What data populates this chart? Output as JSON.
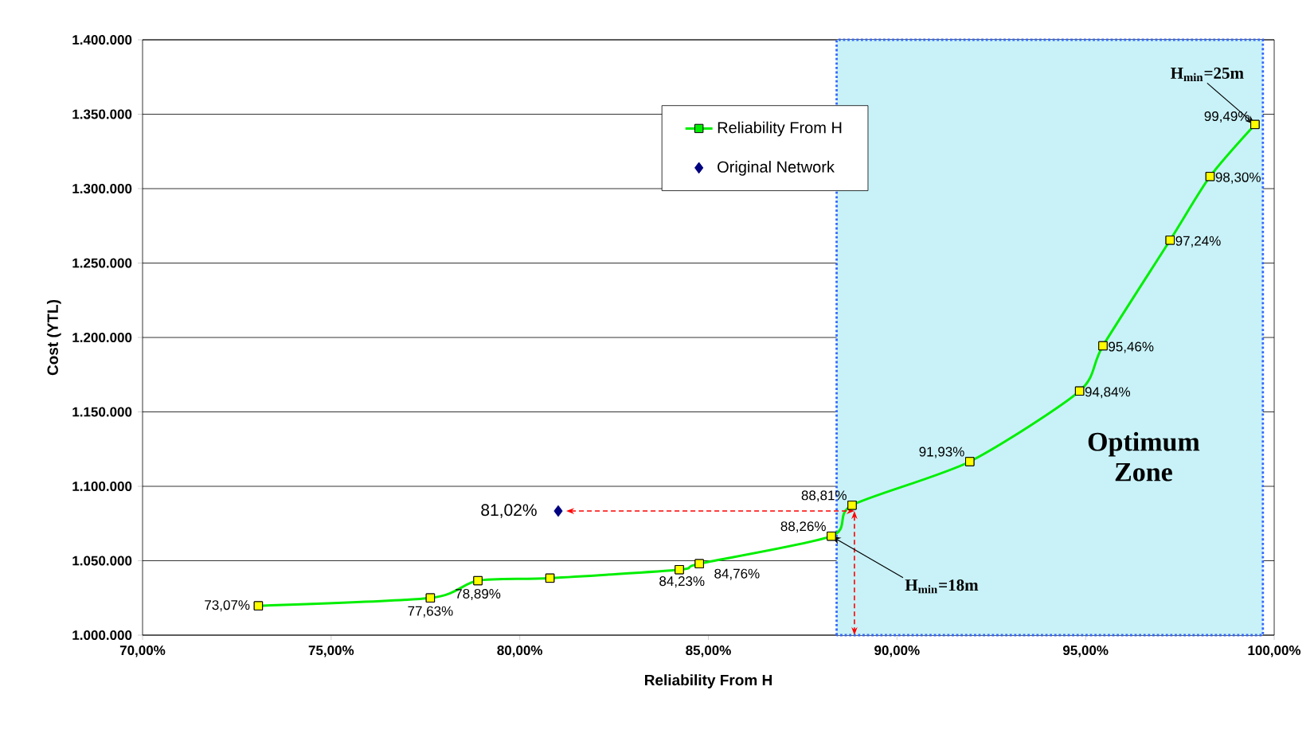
{
  "chart_data": {
    "type": "line",
    "xlabel": "Reliability From H",
    "ylabel": "Cost (YTL)",
    "xlim": [
      70,
      100
    ],
    "ylim": [
      1000000,
      1400000
    ],
    "xticks": [
      {
        "value": 70,
        "label": "70,00%"
      },
      {
        "value": 75,
        "label": "75,00%"
      },
      {
        "value": 80,
        "label": "80,00%"
      },
      {
        "value": 85,
        "label": "85,00%"
      },
      {
        "value": 90,
        "label": "90,00%"
      },
      {
        "value": 95,
        "label": "95,00%"
      },
      {
        "value": 100,
        "label": "100,00%"
      }
    ],
    "yticks": [
      {
        "value": 1000000,
        "label": "1.000.000"
      },
      {
        "value": 1050000,
        "label": "1.050.000"
      },
      {
        "value": 1100000,
        "label": "1.100.000"
      },
      {
        "value": 1150000,
        "label": "1.150.000"
      },
      {
        "value": 1200000,
        "label": "1.200.000"
      },
      {
        "value": 1250000,
        "label": "1.250.000"
      },
      {
        "value": 1300000,
        "label": "1.300.000"
      },
      {
        "value": 1350000,
        "label": "1.350.000"
      },
      {
        "value": 1400000,
        "label": "1.400.000"
      }
    ],
    "grid": "y",
    "legend": "top",
    "series": [
      {
        "name": "Reliability From H",
        "color": "#00ee00",
        "marker": "square",
        "x": [
          73.07,
          77.63,
          78.89,
          80.8,
          84.23,
          84.76,
          88.26,
          88.81,
          91.93,
          94.84,
          95.46,
          97.24,
          98.3,
          99.49
        ],
        "values": [
          1019700,
          1025000,
          1036600,
          1038300,
          1044000,
          1048000,
          1066500,
          1087300,
          1116600,
          1164000,
          1194400,
          1265400,
          1308200,
          1343100
        ],
        "colors": [
          "#ffff00",
          "#ffff00",
          "#ffff00",
          "#ffff00",
          "#ffff00",
          "#ffff00",
          "#ffff00",
          "#ffff00",
          "#ffff00",
          "#ffff00",
          "#ffff00",
          "#ffff00",
          "#ffff00",
          "#ffff00"
        ]
      },
      {
        "name": "Original Network",
        "type": "scatter",
        "color": "#000080",
        "marker": "diamond",
        "x": [
          81.02
        ],
        "values": [
          1083400
        ]
      }
    ],
    "bands": [
      {
        "axis": "x",
        "from": 88.4,
        "to": 99.7,
        "label": "Optimum Zone",
        "color": "#c8f2f8"
      }
    ],
    "annotations": [
      {
        "text": "73,07%",
        "x": 73.07,
        "y": 1019700
      },
      {
        "text": "77,63%",
        "x": 77.63,
        "y": 1025000
      },
      {
        "text": "78,89%",
        "x": 78.89,
        "y": 1036600
      },
      {
        "text": "84,23%",
        "x": 84.23,
        "y": 1044000
      },
      {
        "text": "84,76%",
        "x": 84.76,
        "y": 1048000
      },
      {
        "text": "88,26%",
        "x": 88.26,
        "y": 1066500
      },
      {
        "text": "88,81%",
        "x": 88.81,
        "y": 1087300
      },
      {
        "text": "91,93%",
        "x": 91.93,
        "y": 1116600
      },
      {
        "text": "94,84%",
        "x": 94.84,
        "y": 1164000
      },
      {
        "text": "95,46%",
        "x": 95.46,
        "y": 1194400
      },
      {
        "text": "97,24%",
        "x": 97.24,
        "y": 1265400
      },
      {
        "text": "98,30%",
        "x": 98.3,
        "y": 1308200
      },
      {
        "text": "99,49%",
        "x": 99.49,
        "y": 1343100
      },
      {
        "text": "81,02%",
        "x": 81.02,
        "y": 1083400
      },
      {
        "text": "H$_{min}$=25m",
        "x": 99.49,
        "y": 1343100
      },
      {
        "text": "H$_{min}$=18m",
        "x": 88.26,
        "y": 1066500
      }
    ]
  }
}
